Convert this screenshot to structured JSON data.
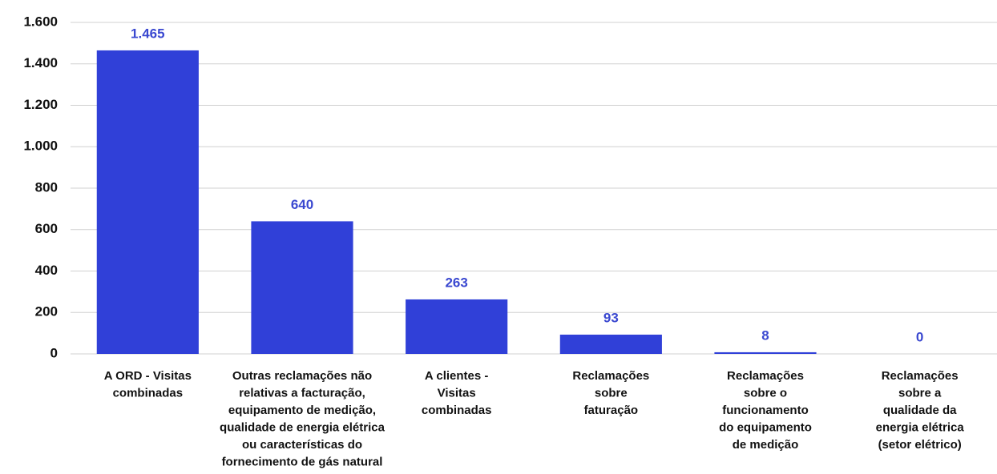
{
  "chart_data": {
    "type": "bar",
    "categories": [
      [
        "A ORD - Visitas",
        "combinadas"
      ],
      [
        "Outras reclamações não",
        "relativas a facturação,",
        "equipamento de medição,",
        "qualidade de energia elétrica",
        "ou características do",
        "fornecimento de gás natural"
      ],
      [
        "A clientes -",
        "Visitas",
        "combinadas"
      ],
      [
        "Reclamações",
        "sobre",
        "faturação"
      ],
      [
        "Reclamações",
        "sobre o",
        "funcionamento",
        "do equipamento",
        "de medição"
      ],
      [
        "Reclamações",
        "sobre a",
        "qualidade da",
        "energia elétrica",
        "(setor elétrico)"
      ]
    ],
    "values": [
      1465,
      640,
      263,
      93,
      8,
      0
    ],
    "value_labels": [
      "1.465",
      "640",
      "263",
      "93",
      "8",
      "0"
    ],
    "color": "#3040d8",
    "ylim": [
      0,
      1600
    ],
    "yticks": [
      0,
      200,
      400,
      600,
      800,
      {
        "value": 1000,
        "label": "1.000"
      },
      {
        "value": 1200,
        "label": "1.200"
      },
      {
        "value": 1400,
        "label": "1.400"
      },
      {
        "value": 1600,
        "label": "1.600"
      }
    ],
    "grid": true
  }
}
